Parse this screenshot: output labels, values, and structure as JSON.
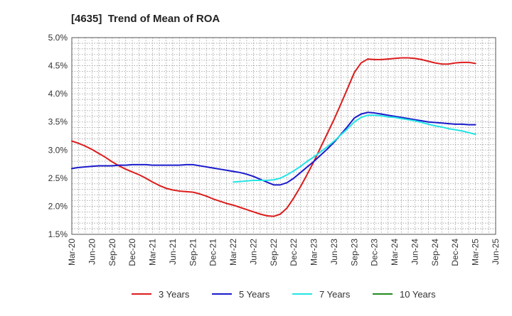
{
  "title": "[4635]  Trend of Mean of ROA",
  "chart_data": {
    "type": "line",
    "title": "[4635]  Trend of Mean of ROA",
    "xlabel": "",
    "ylabel": "",
    "ylim": [
      1.5,
      5.0
    ],
    "y_ticks": [
      "1.5%",
      "2.0%",
      "2.5%",
      "3.0%",
      "3.5%",
      "4.0%",
      "4.5%",
      "5.0%"
    ],
    "x_tick_labels": [
      "Mar-20",
      "Jun-20",
      "Sep-20",
      "Dec-20",
      "Mar-21",
      "Jun-21",
      "Sep-21",
      "Dec-21",
      "Mar-22",
      "Jun-22",
      "Sep-22",
      "Dec-22",
      "Mar-23",
      "Jun-23",
      "Sep-23",
      "Dec-23",
      "Mar-24",
      "Jun-24",
      "Sep-24",
      "Dec-24",
      "Mar-25",
      "Jun-25"
    ],
    "grid": true,
    "legend_position": "bottom",
    "series": [
      {
        "name": "3 Years",
        "color": "#dd1c1c",
        "points": [
          [
            "Mar-20",
            3.16
          ],
          [
            "Apr-20",
            3.12
          ],
          [
            "May-20",
            3.07
          ],
          [
            "Jun-20",
            3.01
          ],
          [
            "Jul-20",
            2.94
          ],
          [
            "Aug-20",
            2.87
          ],
          [
            "Sep-20",
            2.79
          ],
          [
            "Oct-20",
            2.72
          ],
          [
            "Nov-20",
            2.66
          ],
          [
            "Dec-20",
            2.61
          ],
          [
            "Jan-21",
            2.56
          ],
          [
            "Feb-21",
            2.5
          ],
          [
            "Mar-21",
            2.43
          ],
          [
            "Apr-21",
            2.37
          ],
          [
            "May-21",
            2.32
          ],
          [
            "Jun-21",
            2.29
          ],
          [
            "Jul-21",
            2.27
          ],
          [
            "Aug-21",
            2.26
          ],
          [
            "Sep-21",
            2.25
          ],
          [
            "Oct-21",
            2.22
          ],
          [
            "Nov-21",
            2.18
          ],
          [
            "Dec-21",
            2.13
          ],
          [
            "Jan-22",
            2.09
          ],
          [
            "Feb-22",
            2.05
          ],
          [
            "Mar-22",
            2.02
          ],
          [
            "Apr-22",
            1.98
          ],
          [
            "May-22",
            1.94
          ],
          [
            "Jun-22",
            1.9
          ],
          [
            "Jul-22",
            1.86
          ],
          [
            "Aug-22",
            1.83
          ],
          [
            "Sep-22",
            1.82
          ],
          [
            "Oct-22",
            1.86
          ],
          [
            "Nov-22",
            1.97
          ],
          [
            "Dec-22",
            2.15
          ],
          [
            "Jan-23",
            2.35
          ],
          [
            "Feb-23",
            2.57
          ],
          [
            "Mar-23",
            2.8
          ],
          [
            "Apr-23",
            3.05
          ],
          [
            "May-23",
            3.3
          ],
          [
            "Jun-23",
            3.55
          ],
          [
            "Jul-23",
            3.82
          ],
          [
            "Aug-23",
            4.1
          ],
          [
            "Sep-23",
            4.38
          ],
          [
            "Oct-23",
            4.55
          ],
          [
            "Nov-23",
            4.62
          ],
          [
            "Dec-23",
            4.61
          ],
          [
            "Jan-24",
            4.61
          ],
          [
            "Feb-24",
            4.62
          ],
          [
            "Mar-24",
            4.63
          ],
          [
            "Apr-24",
            4.64
          ],
          [
            "May-24",
            4.64
          ],
          [
            "Jun-24",
            4.63
          ],
          [
            "Jul-24",
            4.61
          ],
          [
            "Aug-24",
            4.58
          ],
          [
            "Sep-24",
            4.55
          ],
          [
            "Oct-24",
            4.53
          ],
          [
            "Nov-24",
            4.53
          ],
          [
            "Dec-24",
            4.55
          ],
          [
            "Jan-25",
            4.56
          ],
          [
            "Feb-25",
            4.56
          ],
          [
            "Mar-25",
            4.54
          ]
        ]
      },
      {
        "name": "5 Years",
        "color": "#1a1acc",
        "points": [
          [
            "Mar-20",
            2.67
          ],
          [
            "Apr-20",
            2.69
          ],
          [
            "May-20",
            2.7
          ],
          [
            "Jun-20",
            2.71
          ],
          [
            "Jul-20",
            2.72
          ],
          [
            "Aug-20",
            2.72
          ],
          [
            "Sep-20",
            2.72
          ],
          [
            "Oct-20",
            2.73
          ],
          [
            "Nov-20",
            2.73
          ],
          [
            "Dec-20",
            2.74
          ],
          [
            "Jan-21",
            2.74
          ],
          [
            "Feb-21",
            2.74
          ],
          [
            "Mar-21",
            2.73
          ],
          [
            "Apr-21",
            2.73
          ],
          [
            "May-21",
            2.73
          ],
          [
            "Jun-21",
            2.73
          ],
          [
            "Jul-21",
            2.73
          ],
          [
            "Aug-21",
            2.74
          ],
          [
            "Sep-21",
            2.74
          ],
          [
            "Oct-21",
            2.72
          ],
          [
            "Nov-21",
            2.7
          ],
          [
            "Dec-21",
            2.68
          ],
          [
            "Jan-22",
            2.66
          ],
          [
            "Feb-22",
            2.64
          ],
          [
            "Mar-22",
            2.62
          ],
          [
            "Apr-22",
            2.6
          ],
          [
            "May-22",
            2.57
          ],
          [
            "Jun-22",
            2.53
          ],
          [
            "Jul-22",
            2.48
          ],
          [
            "Aug-22",
            2.43
          ],
          [
            "Sep-22",
            2.38
          ],
          [
            "Oct-22",
            2.38
          ],
          [
            "Nov-22",
            2.42
          ],
          [
            "Dec-22",
            2.5
          ],
          [
            "Jan-23",
            2.6
          ],
          [
            "Feb-23",
            2.7
          ],
          [
            "Mar-23",
            2.8
          ],
          [
            "Apr-23",
            2.91
          ],
          [
            "May-23",
            3.02
          ],
          [
            "Jun-23",
            3.14
          ],
          [
            "Jul-23",
            3.28
          ],
          [
            "Aug-23",
            3.42
          ],
          [
            "Sep-23",
            3.57
          ],
          [
            "Oct-23",
            3.64
          ],
          [
            "Nov-23",
            3.67
          ],
          [
            "Dec-23",
            3.66
          ],
          [
            "Jan-24",
            3.64
          ],
          [
            "Feb-24",
            3.62
          ],
          [
            "Mar-24",
            3.6
          ],
          [
            "Apr-24",
            3.58
          ],
          [
            "May-24",
            3.56
          ],
          [
            "Jun-24",
            3.54
          ],
          [
            "Jul-24",
            3.52
          ],
          [
            "Aug-24",
            3.5
          ],
          [
            "Sep-24",
            3.49
          ],
          [
            "Oct-24",
            3.48
          ],
          [
            "Nov-24",
            3.47
          ],
          [
            "Dec-24",
            3.46
          ],
          [
            "Jan-25",
            3.46
          ],
          [
            "Feb-25",
            3.45
          ],
          [
            "Mar-25",
            3.45
          ]
        ]
      },
      {
        "name": "7 Years",
        "color": "#22e5e5",
        "points": [
          [
            "Mar-22",
            2.43
          ],
          [
            "Apr-22",
            2.44
          ],
          [
            "May-22",
            2.45
          ],
          [
            "Jun-22",
            2.46
          ],
          [
            "Jul-22",
            2.46
          ],
          [
            "Aug-22",
            2.46
          ],
          [
            "Sep-22",
            2.47
          ],
          [
            "Oct-22",
            2.5
          ],
          [
            "Nov-22",
            2.56
          ],
          [
            "Dec-22",
            2.63
          ],
          [
            "Jan-23",
            2.71
          ],
          [
            "Feb-23",
            2.8
          ],
          [
            "Mar-23",
            2.88
          ],
          [
            "Apr-23",
            2.97
          ],
          [
            "May-23",
            3.06
          ],
          [
            "Jun-23",
            3.16
          ],
          [
            "Jul-23",
            3.27
          ],
          [
            "Aug-23",
            3.38
          ],
          [
            "Sep-23",
            3.5
          ],
          [
            "Oct-23",
            3.58
          ],
          [
            "Nov-23",
            3.62
          ],
          [
            "Dec-23",
            3.62
          ],
          [
            "Jan-24",
            3.61
          ],
          [
            "Feb-24",
            3.59
          ],
          [
            "Mar-24",
            3.58
          ],
          [
            "Apr-24",
            3.56
          ],
          [
            "May-24",
            3.54
          ],
          [
            "Jun-24",
            3.52
          ],
          [
            "Jul-24",
            3.49
          ],
          [
            "Aug-24",
            3.46
          ],
          [
            "Sep-24",
            3.43
          ],
          [
            "Oct-24",
            3.41
          ],
          [
            "Nov-24",
            3.38
          ],
          [
            "Dec-24",
            3.36
          ],
          [
            "Jan-25",
            3.34
          ],
          [
            "Feb-25",
            3.31
          ],
          [
            "Mar-25",
            3.28
          ]
        ]
      },
      {
        "name": "10 Years",
        "color": "#1f8c1f",
        "points": []
      }
    ]
  }
}
